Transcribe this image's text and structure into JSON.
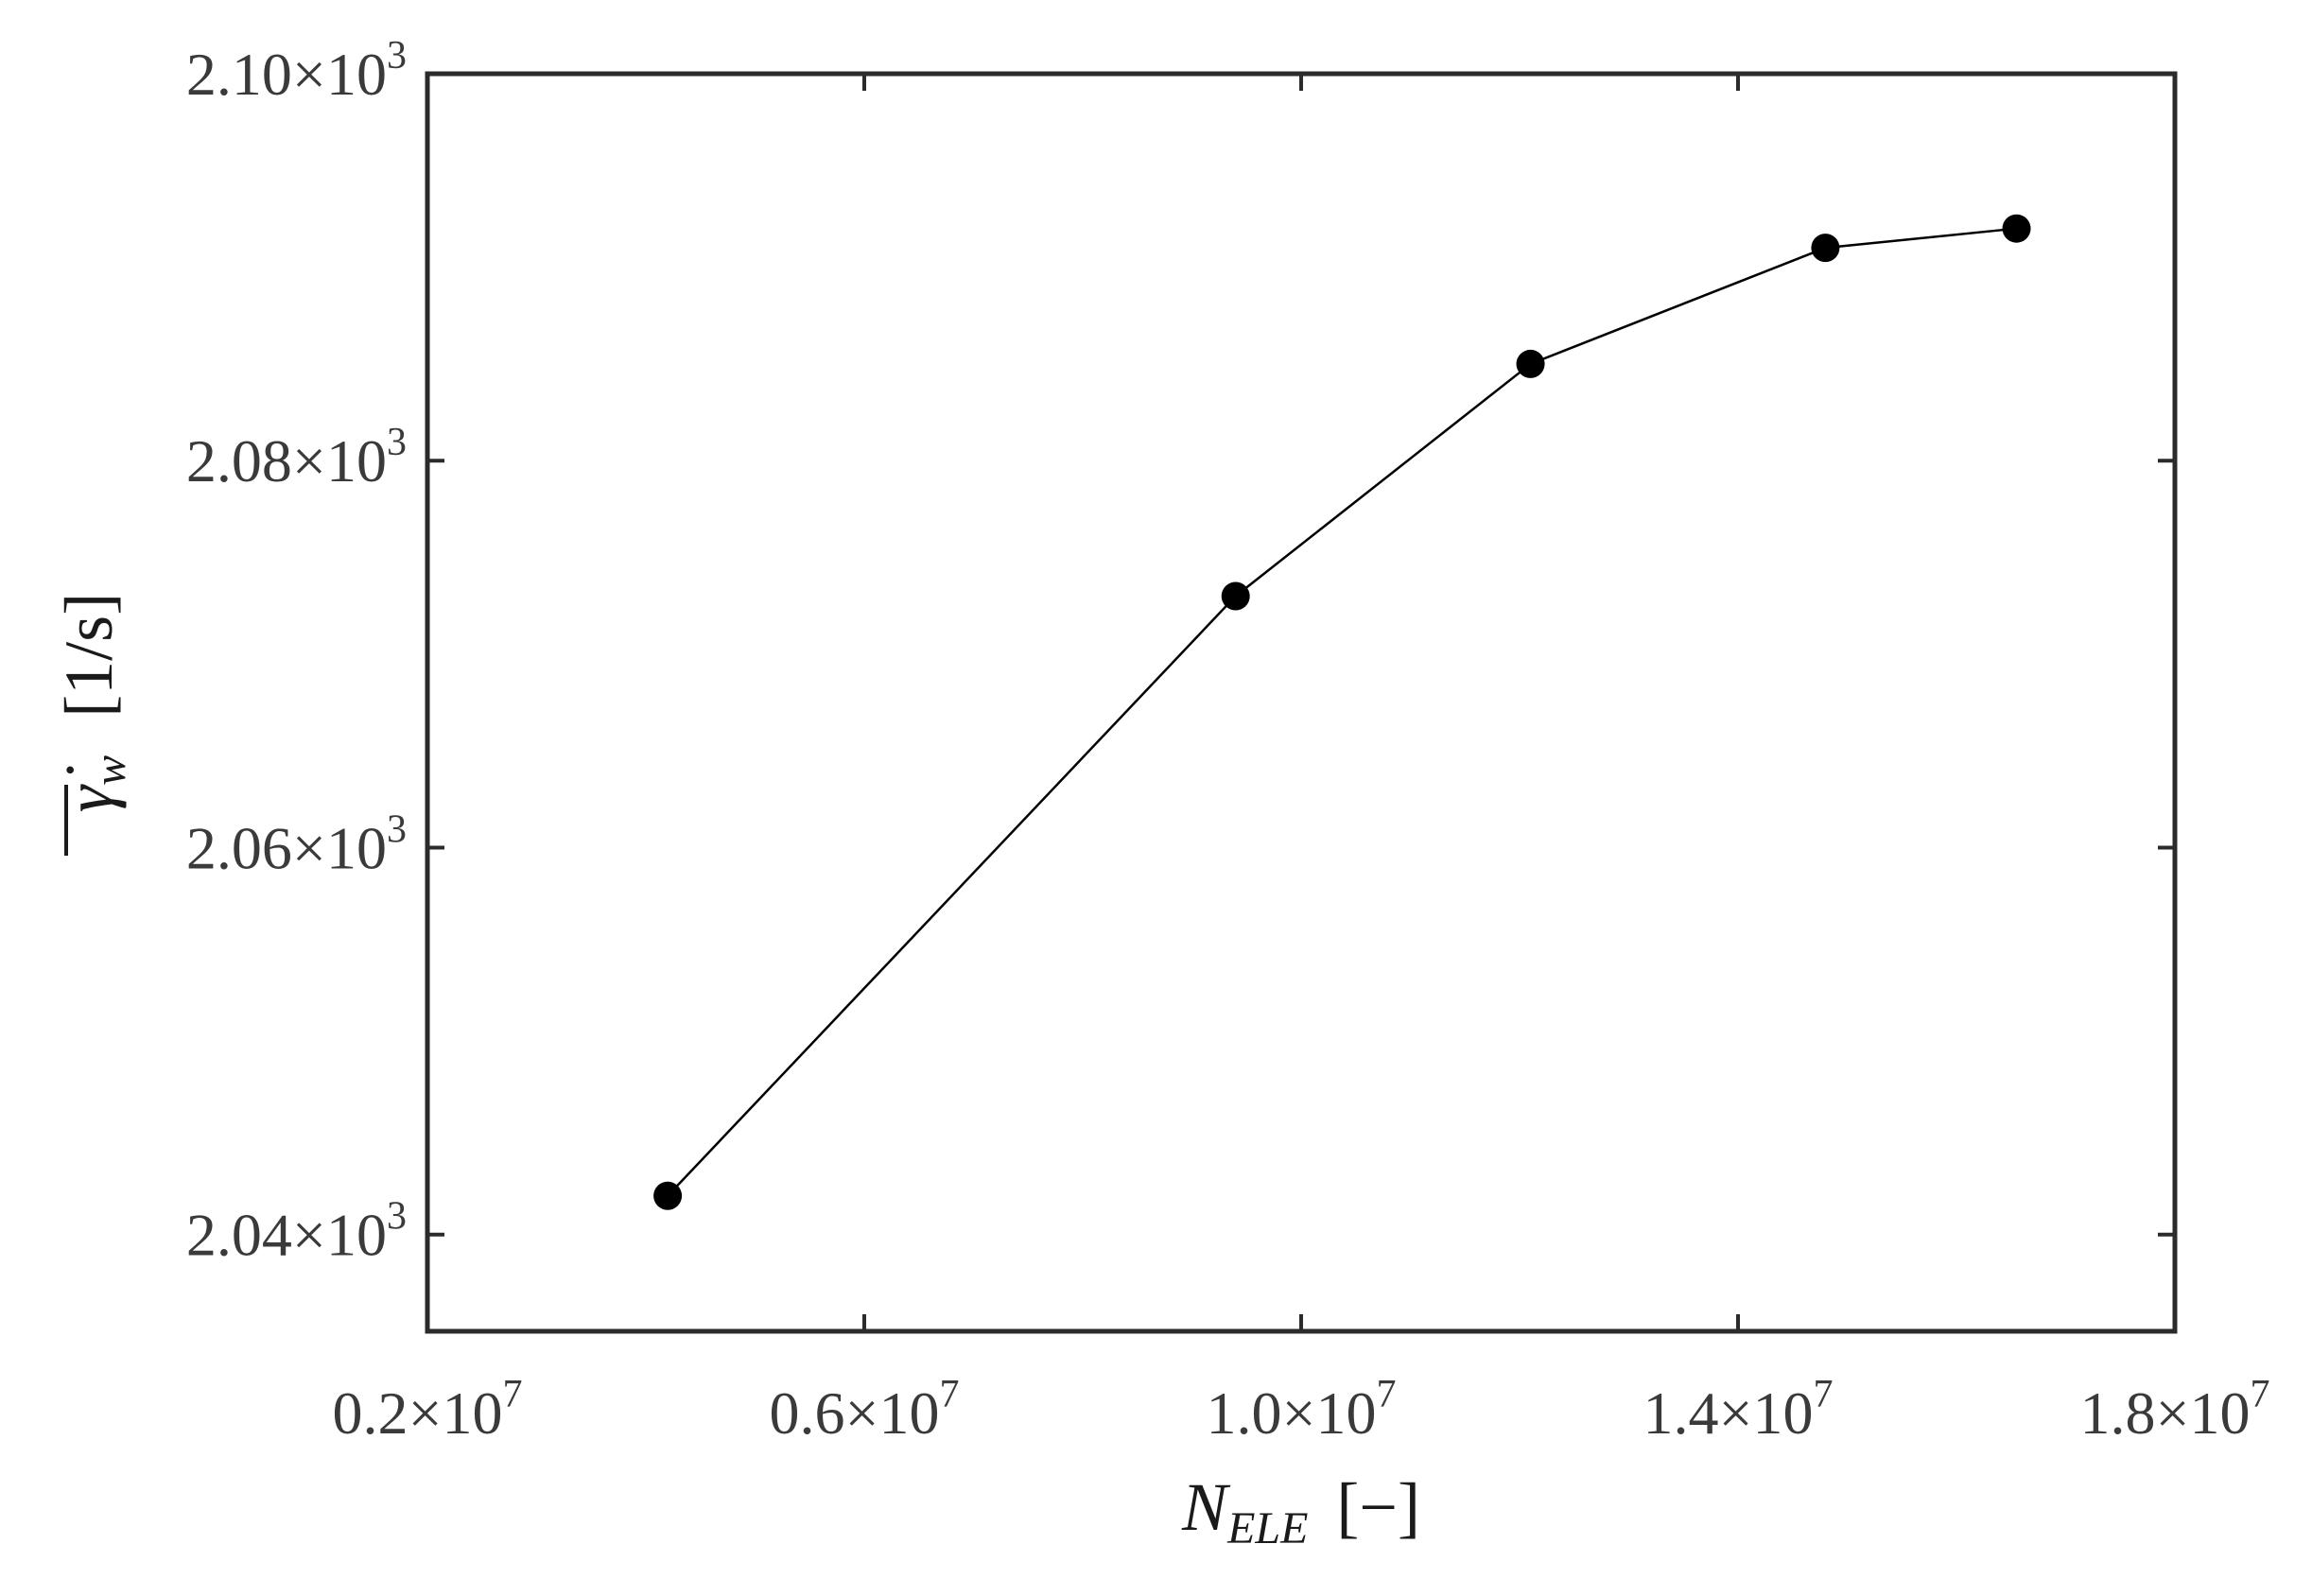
{
  "chart_data": {
    "type": "line",
    "title": "",
    "x_axis": {
      "label_main": "N",
      "label_sub": "ELE",
      "label_unit": "[−]",
      "range": [
        2000000,
        18000000
      ],
      "ticks": [
        {
          "value": 2000000,
          "mantissa": "0.2",
          "exponent": "7"
        },
        {
          "value": 6000000,
          "mantissa": "0.6",
          "exponent": "7"
        },
        {
          "value": 10000000,
          "mantissa": "1.0",
          "exponent": "7"
        },
        {
          "value": 14000000,
          "mantissa": "1.4",
          "exponent": "7"
        },
        {
          "value": 18000000,
          "mantissa": "1.8",
          "exponent": "7"
        }
      ]
    },
    "y_axis": {
      "label_main": "γ̇",
      "label_sub": "w",
      "label_unit": "[1/s]",
      "range": [
        2035,
        2100
      ],
      "ticks": [
        {
          "value": 2040,
          "mantissa": "2.04",
          "exponent": "3"
        },
        {
          "value": 2060,
          "mantissa": "2.06",
          "exponent": "3"
        },
        {
          "value": 2080,
          "mantissa": "2.08",
          "exponent": "3"
        },
        {
          "value": 2100,
          "mantissa": "2.10",
          "exponent": "3"
        }
      ]
    },
    "grid": false,
    "legend": "none",
    "series": [
      {
        "x": [
          4200000,
          9400000,
          12100000,
          14800000,
          16550000
        ],
        "y": [
          2042,
          2073,
          2085,
          2091,
          2092
        ],
        "color": "#000000",
        "marker": "filled-circle"
      }
    ]
  }
}
